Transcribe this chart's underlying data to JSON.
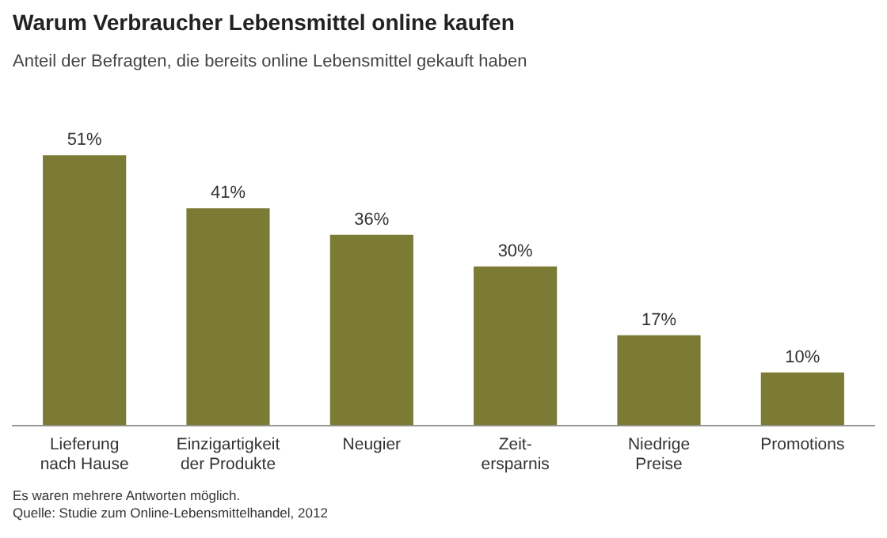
{
  "chart_data": {
    "type": "bar",
    "title": "Warum Verbraucher Lebensmittel online kaufen",
    "subtitle": "Anteil der Befragten, die bereits online Lebensmittel gekauft haben",
    "categories": [
      "Lieferung\nnach Hause",
      "Einzigartigkeit\nder Produkte",
      "Neugier",
      "Zeit-\nersparnis",
      "Niedrige\nPreise",
      "Promotions"
    ],
    "values": [
      51,
      41,
      36,
      30,
      17,
      10
    ],
    "value_labels": [
      "51%",
      "41%",
      "36%",
      "30%",
      "17%",
      "10%"
    ],
    "color": "#7b7b35",
    "grid": false,
    "legend": false,
    "annotations": [
      "Es waren mehrere Antworten möglich.",
      "Quelle: Studie zum Online-Lebensmittelhandel, 2012"
    ]
  }
}
